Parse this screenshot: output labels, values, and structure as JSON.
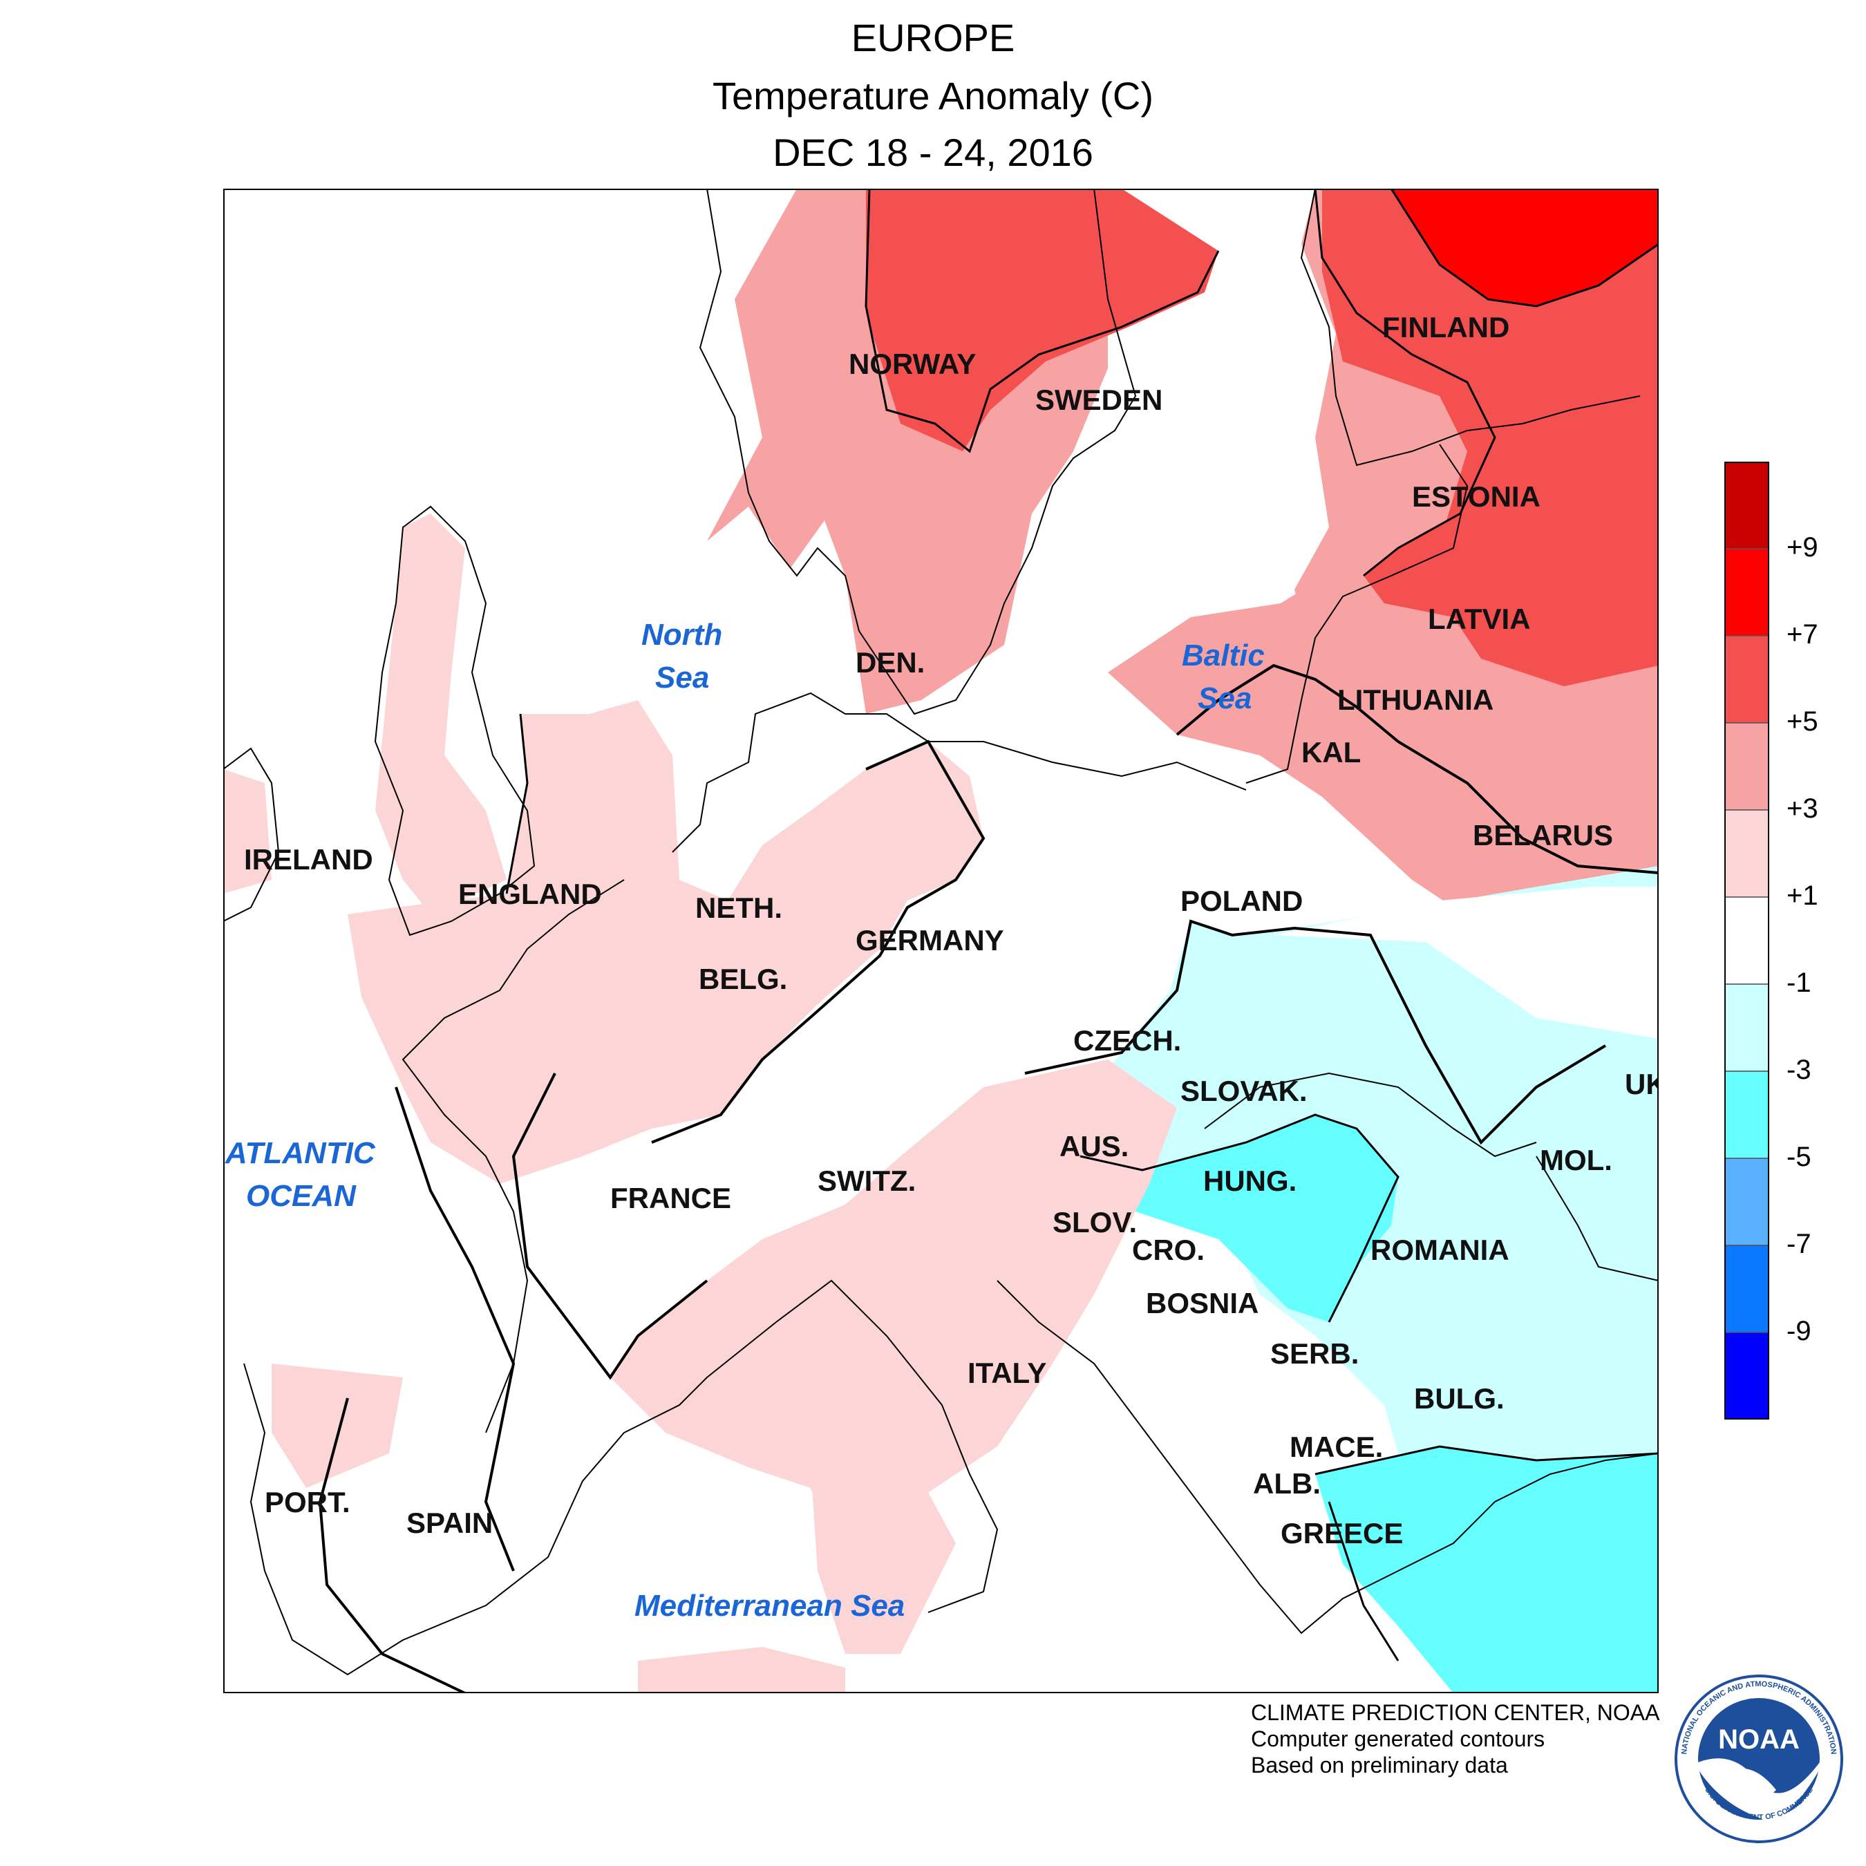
{
  "header": {
    "region": "EUROPE",
    "variable": "Temperature Anomaly (C)",
    "period": "DEC 18 - 24, 2016"
  },
  "labels": {
    "norway": "NORWAY",
    "sweden": "SWEDEN",
    "finland": "FINLAND",
    "estonia": "ESTONIA",
    "latvia": "LATVIA",
    "lithuania": "LITHUANIA",
    "kal": "KAL",
    "belarus": "BELARUS",
    "den": "DEN.",
    "ireland": "IRELAND",
    "england": "ENGLAND",
    "neth": "NETH.",
    "belg": "BELG.",
    "germany": "GERMANY",
    "poland": "POLAND",
    "czech": "CZECH.",
    "slovak": "SLOVAK.",
    "uk": "UK",
    "mol": "MOL.",
    "aus": "AUS.",
    "hung": "HUNG.",
    "france": "FRANCE",
    "switz": "SWITZ.",
    "slov": "SLOV.",
    "cro": "CRO.",
    "romania": "ROMANIA",
    "bosnia": "BOSNIA",
    "serb": "SERB.",
    "italy": "ITALY",
    "bulg": "BULG.",
    "mace": "MACE.",
    "alb": "ALB.",
    "port": "PORT.",
    "spain": "SPAIN",
    "greece": "GREECE"
  },
  "seas": {
    "north_sea_1": "North",
    "north_sea_2": "Sea",
    "baltic_1": "Baltic",
    "baltic_2": "Sea",
    "atlantic_1": "ATLANTIC",
    "atlantic_2": "OCEAN",
    "med": "Mediterranean Sea"
  },
  "legend": {
    "colors": [
      "#c80000",
      "#ff0000",
      "#f45050",
      "#f8a3a3",
      "#fcd6d6",
      "#ffffff",
      "#ccffff",
      "#66ffff",
      "#5ab0ff",
      "#0a78ff",
      "#0000ff"
    ],
    "ticks": [
      "+9",
      "+7",
      "+5",
      "+3",
      "+1",
      "-1",
      "-3",
      "-5",
      "-7",
      "-9"
    ]
  },
  "credits": {
    "line1": "CLIMATE PREDICTION CENTER, NOAA",
    "line2": "Computer generated contours",
    "line3": "Based on preliminary data"
  },
  "logo": {
    "text": "NOAA",
    "ring_top": "NATIONAL OCEANIC AND ATMOSPHERIC ADMINISTRATION",
    "ring_bottom": "U.S. DEPARTMENT OF COMMERCE"
  }
}
